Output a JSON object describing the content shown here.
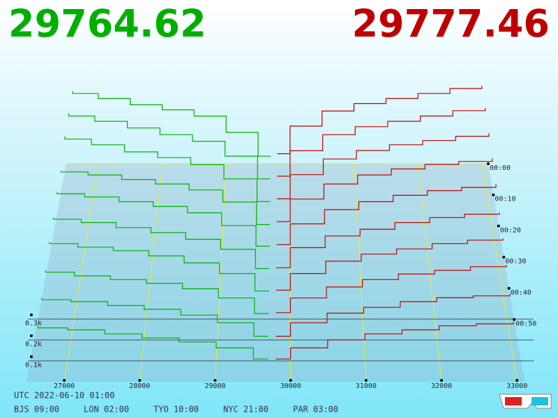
{
  "chart_data": {
    "type": "depth3d",
    "bid_price": 29764.62,
    "ask_price": 29777.46,
    "bid_color": "#00b000",
    "ask_color": "#c00000",
    "xlim": [
      26500,
      33100
    ],
    "xticks": [
      27000,
      28000,
      29000,
      30000,
      31000,
      32000,
      33000
    ],
    "ylim": [
      0,
      1000
    ],
    "yticks": [
      {
        "value": 100,
        "label": "0.1k"
      },
      {
        "value": 200,
        "label": "0.2k"
      },
      {
        "value": 300,
        "label": "0.3k"
      }
    ],
    "time_ticks": [
      "00:00",
      "00:10",
      "00:20",
      "00:30",
      "00:40",
      "00:50"
    ],
    "grid": true,
    "bid_x": [
      29700,
      29500,
      29000,
      28500,
      28000,
      27500,
      27000,
      26600
    ],
    "ask_x": [
      29800,
      30000,
      30500,
      31000,
      31500,
      32000,
      32500,
      33000
    ],
    "slices": [
      {
        "bids": [
          60,
          250,
          380,
          430,
          470,
          520,
          560,
          580
        ],
        "asks": [
          80,
          300,
          420,
          480,
          520,
          560,
          600,
          620
        ]
      },
      {
        "bids": [
          50,
          220,
          330,
          380,
          430,
          480,
          520,
          540
        ],
        "asks": [
          70,
          260,
          380,
          440,
          480,
          520,
          560,
          580
        ]
      },
      {
        "bids": [
          40,
          200,
          300,
          350,
          390,
          440,
          480,
          500
        ],
        "asks": [
          60,
          230,
          340,
          400,
          440,
          470,
          500,
          520
        ]
      },
      {
        "bids": [
          30,
          180,
          260,
          300,
          330,
          360,
          380,
          390
        ],
        "asks": [
          50,
          200,
          300,
          360,
          400,
          430,
          450,
          470
        ]
      },
      {
        "bids": [
          30,
          160,
          240,
          280,
          310,
          340,
          360,
          370
        ],
        "asks": [
          40,
          170,
          260,
          310,
          350,
          380,
          400,
          420
        ]
      },
      {
        "bids": [
          25,
          140,
          200,
          240,
          270,
          300,
          320,
          330
        ],
        "asks": [
          30,
          150,
          220,
          260,
          300,
          330,
          350,
          360
        ]
      },
      {
        "bids": [
          20,
          120,
          180,
          220,
          250,
          270,
          290,
          300
        ],
        "asks": [
          25,
          120,
          190,
          230,
          260,
          290,
          310,
          320
        ]
      },
      {
        "bids": [
          15,
          100,
          150,
          180,
          200,
          220,
          240,
          250
        ],
        "asks": [
          20,
          100,
          160,
          200,
          230,
          250,
          270,
          280
        ]
      },
      {
        "bids": [
          10,
          80,
          120,
          150,
          170,
          190,
          200,
          210
        ],
        "asks": [
          10,
          80,
          130,
          160,
          190,
          210,
          220,
          230
        ]
      },
      {
        "bids": [
          5,
          60,
          90,
          110,
          130,
          150,
          160,
          170
        ],
        "asks": [
          5,
          60,
          100,
          130,
          150,
          170,
          180,
          190
        ]
      }
    ],
    "footer_utc": "UTC 2022-06-10 01:00",
    "footer_zones": [
      "BJS 09:00",
      "LON 02:00",
      "TYO 10:00",
      "NYC 21:00",
      "PAR 03:00"
    ]
  }
}
